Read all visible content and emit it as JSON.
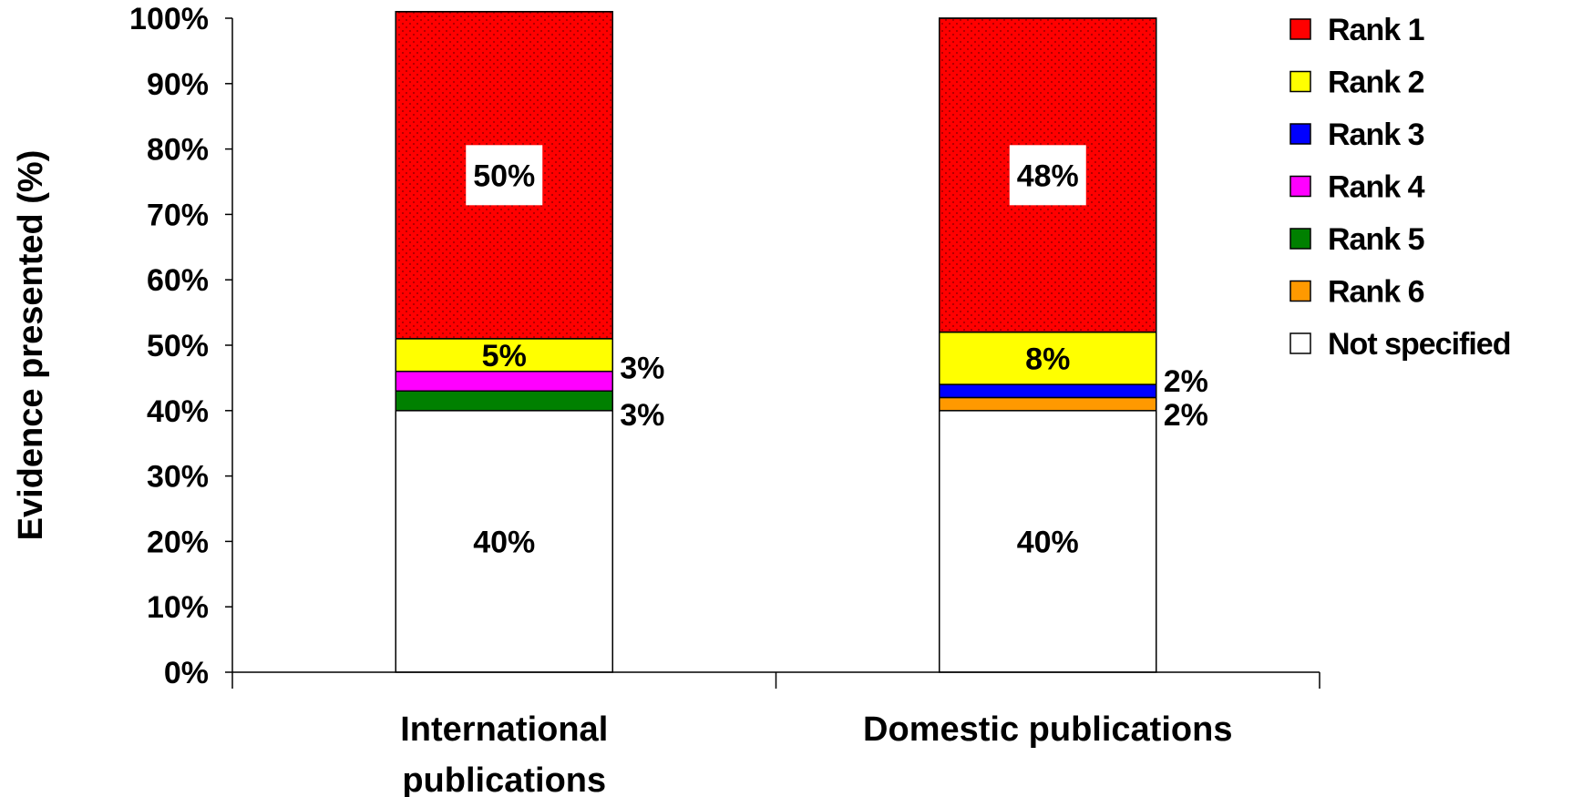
{
  "chart_data": {
    "type": "bar",
    "stacked": true,
    "title": "",
    "xlabel": "",
    "ylabel": "Evidence presented (%)",
    "ylim": [
      0,
      100
    ],
    "yticks": [
      "0%",
      "10%",
      "20%",
      "30%",
      "40%",
      "50%",
      "60%",
      "70%",
      "80%",
      "90%",
      "100%"
    ],
    "grid": false,
    "legend_position": "right",
    "categories": [
      {
        "lines": [
          "International",
          "publications"
        ]
      },
      {
        "lines": [
          "Domestic publications"
        ]
      }
    ],
    "series": [
      {
        "name": "Not specified",
        "color": "#ffffff",
        "values": [
          40,
          40
        ],
        "labels": [
          "40%",
          "40%"
        ]
      },
      {
        "name": "Rank 6",
        "color": "#ff9900",
        "values": [
          0,
          2
        ],
        "labels": [
          "",
          "2%"
        ]
      },
      {
        "name": "Rank 5",
        "color": "#008000",
        "values": [
          3,
          0
        ],
        "labels": [
          "3%",
          ""
        ]
      },
      {
        "name": "Rank 4",
        "color": "#ff00ff",
        "values": [
          3,
          0
        ],
        "labels": [
          "3%",
          ""
        ]
      },
      {
        "name": "Rank 3",
        "color": "#0000ff",
        "values": [
          0,
          2
        ],
        "labels": [
          "",
          "2%"
        ]
      },
      {
        "name": "Rank 2",
        "color": "#ffff00",
        "values": [
          5,
          8
        ],
        "labels": [
          "5%",
          "8%"
        ]
      },
      {
        "name": "Rank 1",
        "color": "#ff0000",
        "values": [
          50,
          48
        ],
        "labels": [
          "50%",
          "48%"
        ]
      }
    ],
    "legend_order": [
      "Rank 1",
      "Rank 2",
      "Rank 3",
      "Rank 4",
      "Rank 5",
      "Rank 6",
      "Not specified"
    ]
  }
}
